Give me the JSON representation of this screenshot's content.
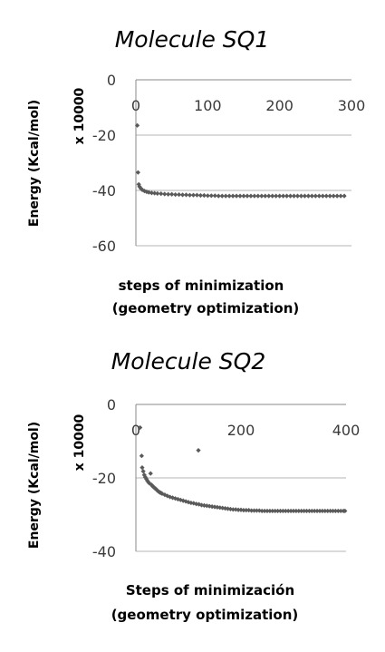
{
  "chart_data": [
    {
      "type": "scatter",
      "title": "Molecule SQ1",
      "ylabel": "Energy (Kcal/mol)",
      "yunit": "x 10000",
      "xlabel_line1": "steps of minimization",
      "xlabel_line2": "(geometry optimization)",
      "xlim": [
        0,
        300
      ],
      "ylim": [
        -60,
        0
      ],
      "xticks": [
        0,
        100,
        200,
        300
      ],
      "yticks": [
        0,
        -20,
        -40,
        -60
      ],
      "grid": true,
      "x_axis_position": "top",
      "marker_color": "#5a5a5a",
      "points": [
        [
          2,
          -16.5
        ],
        [
          3,
          -33.5
        ],
        [
          4,
          -37.8
        ],
        [
          5,
          -38.6
        ],
        [
          7,
          -39.3
        ],
        [
          9,
          -39.8
        ],
        [
          12,
          -40.2
        ],
        [
          15,
          -40.5
        ],
        [
          18,
          -40.7
        ],
        [
          22,
          -40.9
        ],
        [
          26,
          -41.0
        ],
        [
          30,
          -41.1
        ],
        [
          35,
          -41.2
        ],
        [
          40,
          -41.3
        ],
        [
          45,
          -41.4
        ],
        [
          50,
          -41.4
        ],
        [
          55,
          -41.5
        ],
        [
          60,
          -41.5
        ],
        [
          65,
          -41.6
        ],
        [
          70,
          -41.6
        ],
        [
          75,
          -41.7
        ],
        [
          80,
          -41.7
        ],
        [
          85,
          -41.7
        ],
        [
          90,
          -41.8
        ],
        [
          95,
          -41.8
        ],
        [
          100,
          -41.9
        ],
        [
          105,
          -41.9
        ],
        [
          110,
          -41.9
        ],
        [
          115,
          -42.0
        ],
        [
          120,
          -42.0
        ],
        [
          125,
          -42.0
        ],
        [
          130,
          -42.0
        ],
        [
          135,
          -42.0
        ],
        [
          140,
          -42.0
        ],
        [
          145,
          -42.0
        ],
        [
          150,
          -42.0
        ],
        [
          155,
          -42.0
        ],
        [
          160,
          -42.0
        ],
        [
          165,
          -42.0
        ],
        [
          170,
          -42.0
        ],
        [
          175,
          -42.0
        ],
        [
          180,
          -42.0
        ],
        [
          185,
          -42.0
        ],
        [
          190,
          -42.0
        ],
        [
          195,
          -42.0
        ],
        [
          200,
          -42.0
        ],
        [
          205,
          -42.0
        ],
        [
          210,
          -42.0
        ],
        [
          215,
          -42.0
        ],
        [
          220,
          -42.0
        ],
        [
          225,
          -42.0
        ],
        [
          230,
          -42.0
        ],
        [
          235,
          -42.0
        ],
        [
          240,
          -42.0
        ],
        [
          245,
          -42.0
        ],
        [
          250,
          -42.0
        ],
        [
          255,
          -42.0
        ],
        [
          260,
          -42.0
        ],
        [
          265,
          -42.0
        ],
        [
          270,
          -42.0
        ],
        [
          275,
          -42.0
        ],
        [
          280,
          -42.0
        ],
        [
          285,
          -42.0
        ],
        [
          290,
          -42.0
        ]
      ]
    },
    {
      "type": "scatter",
      "title": "Molecule SQ2",
      "ylabel": "Energy (Kcal/mol)",
      "yunit": "x 10000",
      "xlabel_line1": "Steps of minimización",
      "xlabel_line2": "(geometry optimization)",
      "xlim": [
        0,
        400
      ],
      "ylim": [
        -40,
        0
      ],
      "xticks": [
        0,
        200,
        400
      ],
      "yticks": [
        0,
        -20,
        -40
      ],
      "grid": true,
      "x_axis_position": "top",
      "marker_color": "#5a5a5a",
      "points": [
        [
          8,
          -6.3
        ],
        [
          11,
          -14.0
        ],
        [
          12,
          -17.2
        ],
        [
          14,
          -18.2
        ],
        [
          16,
          -19.2
        ],
        [
          18,
          -19.8
        ],
        [
          20,
          -20.3
        ],
        [
          22,
          -20.8
        ],
        [
          24,
          -21.2
        ],
        [
          26,
          -21.5
        ],
        [
          28,
          -18.8
        ],
        [
          30,
          -21.9
        ],
        [
          32,
          -22.3
        ],
        [
          34,
          -22.5
        ],
        [
          36,
          -22.8
        ],
        [
          38,
          -23.0
        ],
        [
          40,
          -23.3
        ],
        [
          42,
          -23.6
        ],
        [
          44,
          -23.8
        ],
        [
          46,
          -24.0
        ],
        [
          48,
          -24.1
        ],
        [
          50,
          -24.3
        ],
        [
          55,
          -24.6
        ],
        [
          60,
          -24.9
        ],
        [
          65,
          -25.2
        ],
        [
          70,
          -25.4
        ],
        [
          75,
          -25.6
        ],
        [
          80,
          -25.8
        ],
        [
          85,
          -26.0
        ],
        [
          90,
          -26.2
        ],
        [
          95,
          -26.4
        ],
        [
          100,
          -26.6
        ],
        [
          105,
          -26.8
        ],
        [
          110,
          -26.9
        ],
        [
          115,
          -27.1
        ],
        [
          119,
          -12.5
        ],
        [
          120,
          -27.2
        ],
        [
          125,
          -27.4
        ],
        [
          130,
          -27.5
        ],
        [
          135,
          -27.6
        ],
        [
          140,
          -27.7
        ],
        [
          145,
          -27.8
        ],
        [
          150,
          -27.9
        ],
        [
          155,
          -28.0
        ],
        [
          160,
          -28.1
        ],
        [
          165,
          -28.2
        ],
        [
          170,
          -28.3
        ],
        [
          175,
          -28.4
        ],
        [
          180,
          -28.5
        ],
        [
          185,
          -28.6
        ],
        [
          190,
          -28.6
        ],
        [
          195,
          -28.7
        ],
        [
          200,
          -28.7
        ],
        [
          205,
          -28.8
        ],
        [
          210,
          -28.8
        ],
        [
          215,
          -28.8
        ],
        [
          220,
          -28.9
        ],
        [
          225,
          -28.9
        ],
        [
          230,
          -28.9
        ],
        [
          235,
          -28.9
        ],
        [
          240,
          -29.0
        ],
        [
          245,
          -29.0
        ],
        [
          250,
          -29.0
        ],
        [
          255,
          -29.0
        ],
        [
          260,
          -29.0
        ],
        [
          265,
          -29.0
        ],
        [
          270,
          -29.0
        ],
        [
          275,
          -29.0
        ],
        [
          280,
          -29.0
        ],
        [
          285,
          -29.0
        ],
        [
          290,
          -29.0
        ],
        [
          295,
          -29.0
        ],
        [
          300,
          -29.0
        ],
        [
          305,
          -29.0
        ],
        [
          310,
          -29.0
        ],
        [
          315,
          -29.0
        ],
        [
          320,
          -29.0
        ],
        [
          325,
          -29.0
        ],
        [
          330,
          -29.0
        ],
        [
          335,
          -29.0
        ],
        [
          340,
          -29.0
        ],
        [
          345,
          -29.0
        ],
        [
          350,
          -29.0
        ],
        [
          355,
          -29.0
        ],
        [
          360,
          -29.0
        ],
        [
          365,
          -29.0
        ],
        [
          370,
          -29.0
        ],
        [
          375,
          -29.0
        ],
        [
          380,
          -29.0
        ],
        [
          385,
          -29.0
        ],
        [
          390,
          -29.0
        ],
        [
          395,
          -29.0
        ],
        [
          398,
          -29.0
        ]
      ]
    }
  ]
}
